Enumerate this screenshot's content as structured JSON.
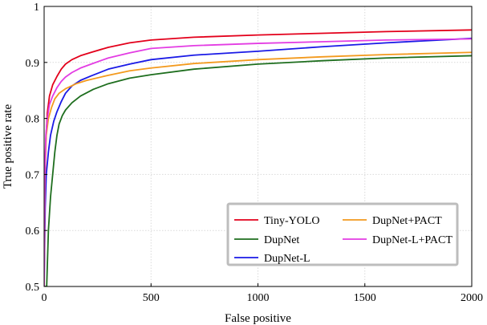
{
  "chart_data": {
    "type": "line",
    "title": "",
    "xlabel": "False positive",
    "ylabel": "True positive rate",
    "xlim": [
      0,
      2000
    ],
    "ylim": [
      0.5,
      1
    ],
    "xticks": [
      0,
      500,
      1000,
      1500,
      2000
    ],
    "yticks": [
      0.5,
      0.6,
      0.7,
      0.8,
      0.9,
      1
    ],
    "ytick_labels": [
      "0.5",
      "0.6",
      "0.7",
      "0.8",
      "0.9",
      "1"
    ],
    "grid": true,
    "legend_placement": "bottom-right",
    "series": [
      {
        "name": "Tiny-YOLO",
        "color": "#e3001b",
        "points": [
          [
            0,
            0.5
          ],
          [
            3,
            0.68
          ],
          [
            8,
            0.76
          ],
          [
            15,
            0.81
          ],
          [
            25,
            0.84
          ],
          [
            40,
            0.86
          ],
          [
            60,
            0.875
          ],
          [
            80,
            0.888
          ],
          [
            100,
            0.897
          ],
          [
            130,
            0.905
          ],
          [
            170,
            0.912
          ],
          [
            220,
            0.918
          ],
          [
            300,
            0.927
          ],
          [
            400,
            0.935
          ],
          [
            500,
            0.94
          ],
          [
            700,
            0.945
          ],
          [
            1000,
            0.949
          ],
          [
            1300,
            0.952
          ],
          [
            1600,
            0.955
          ],
          [
            2000,
            0.958
          ]
        ]
      },
      {
        "name": "DupNet",
        "color": "#1e6e1e",
        "points": [
          [
            0,
            0.5
          ],
          [
            12,
            0.5
          ],
          [
            20,
            0.6
          ],
          [
            30,
            0.66
          ],
          [
            40,
            0.7
          ],
          [
            50,
            0.74
          ],
          [
            60,
            0.77
          ],
          [
            70,
            0.79
          ],
          [
            85,
            0.805
          ],
          [
            100,
            0.815
          ],
          [
            130,
            0.828
          ],
          [
            170,
            0.84
          ],
          [
            230,
            0.852
          ],
          [
            300,
            0.862
          ],
          [
            400,
            0.872
          ],
          [
            500,
            0.878
          ],
          [
            700,
            0.888
          ],
          [
            1000,
            0.897
          ],
          [
            1300,
            0.903
          ],
          [
            1600,
            0.908
          ],
          [
            2000,
            0.912
          ]
        ]
      },
      {
        "name": "DupNet-L",
        "color": "#1a1ae6",
        "points": [
          [
            0,
            0.5
          ],
          [
            5,
            0.64
          ],
          [
            10,
            0.7
          ],
          [
            20,
            0.74
          ],
          [
            30,
            0.77
          ],
          [
            45,
            0.795
          ],
          [
            60,
            0.812
          ],
          [
            80,
            0.83
          ],
          [
            100,
            0.845
          ],
          [
            130,
            0.858
          ],
          [
            170,
            0.868
          ],
          [
            220,
            0.876
          ],
          [
            300,
            0.888
          ],
          [
            400,
            0.897
          ],
          [
            500,
            0.905
          ],
          [
            700,
            0.913
          ],
          [
            1000,
            0.92
          ],
          [
            1300,
            0.928
          ],
          [
            1600,
            0.935
          ],
          [
            2000,
            0.943
          ]
        ]
      },
      {
        "name": "DupNet+PACT",
        "color": "#f39a1e",
        "points": [
          [
            0,
            0.5
          ],
          [
            4,
            0.7
          ],
          [
            10,
            0.77
          ],
          [
            20,
            0.8
          ],
          [
            35,
            0.82
          ],
          [
            50,
            0.835
          ],
          [
            70,
            0.845
          ],
          [
            100,
            0.853
          ],
          [
            150,
            0.862
          ],
          [
            200,
            0.868
          ],
          [
            300,
            0.877
          ],
          [
            400,
            0.885
          ],
          [
            500,
            0.89
          ],
          [
            700,
            0.898
          ],
          [
            1000,
            0.905
          ],
          [
            1300,
            0.91
          ],
          [
            1600,
            0.914
          ],
          [
            2000,
            0.918
          ]
        ]
      },
      {
        "name": "DupNet-L+PACT",
        "color": "#e33ce3",
        "points": [
          [
            0,
            0.5
          ],
          [
            3,
            0.7
          ],
          [
            8,
            0.77
          ],
          [
            15,
            0.8
          ],
          [
            25,
            0.825
          ],
          [
            40,
            0.84
          ],
          [
            60,
            0.855
          ],
          [
            80,
            0.866
          ],
          [
            100,
            0.874
          ],
          [
            130,
            0.882
          ],
          [
            170,
            0.89
          ],
          [
            220,
            0.897
          ],
          [
            300,
            0.908
          ],
          [
            400,
            0.917
          ],
          [
            500,
            0.925
          ],
          [
            700,
            0.93
          ],
          [
            1000,
            0.934
          ],
          [
            1300,
            0.937
          ],
          [
            1600,
            0.94
          ],
          [
            2000,
            0.942
          ]
        ]
      }
    ]
  }
}
